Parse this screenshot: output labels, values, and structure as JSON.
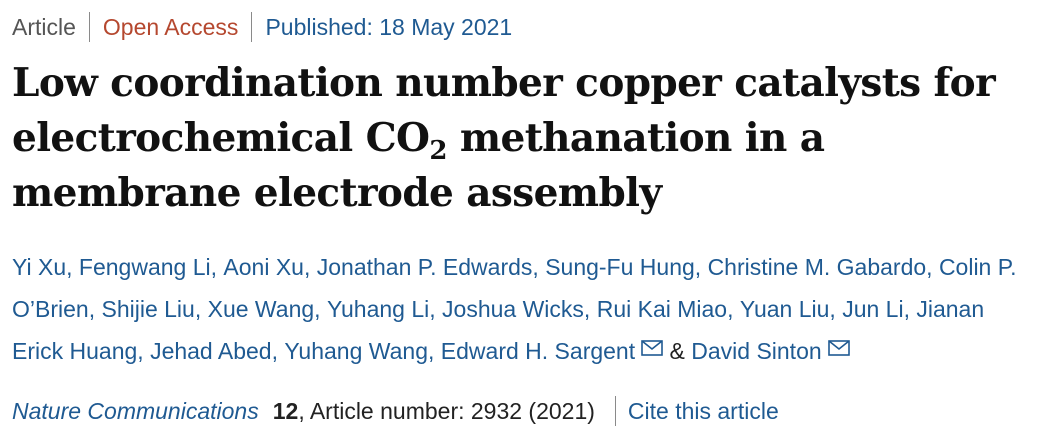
{
  "header": {
    "article_type": "Article",
    "access": "Open Access",
    "published": "Published: 18 May 2021"
  },
  "title": {
    "before_sub": "Low coordination number copper catalysts for electrochemical CO",
    "sub": "2",
    "after_sub": " methanation in a membrane electrode assembly"
  },
  "authors": [
    {
      "name": "Yi Xu"
    },
    {
      "name": "Fengwang Li"
    },
    {
      "name": "Aoni Xu"
    },
    {
      "name": "Jonathan P. Edwards"
    },
    {
      "name": "Sung-Fu Hung"
    },
    {
      "name": "Christine M. Gabardo"
    },
    {
      "name": "Colin P. O’Brien"
    },
    {
      "name": "Shijie Liu"
    },
    {
      "name": "Xue Wang"
    },
    {
      "name": "Yuhang Li"
    },
    {
      "name": "Joshua Wicks"
    },
    {
      "name": "Rui Kai Miao"
    },
    {
      "name": "Yuan Liu"
    },
    {
      "name": "Jun Li"
    },
    {
      "name": "Jianan Erick Huang"
    },
    {
      "name": "Jehad Abed"
    },
    {
      "name": "Yuhang Wang"
    },
    {
      "name": "Edward H. Sargent"
    },
    {
      "name": "David Sinton"
    }
  ],
  "author_separator": ", ",
  "author_final_joiner": "&",
  "citation": {
    "journal": "Nature Communications",
    "volume": "12",
    "details": ", Article number: 2932 (2021)",
    "cite_link": "Cite this article"
  },
  "colors": {
    "link": "#1f5a92",
    "open_access": "#b5482f",
    "title": "#111111",
    "meta_gray": "#555555"
  },
  "icons": {
    "corresponding_author": "mail-icon"
  }
}
